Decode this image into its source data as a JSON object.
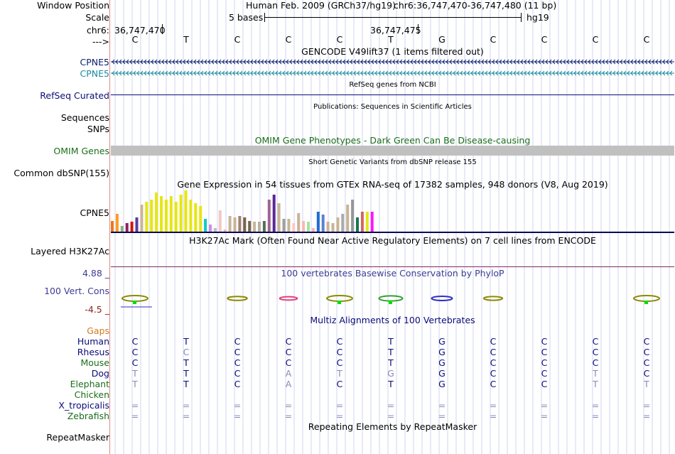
{
  "header": {
    "window_position_label": "Window Position",
    "scale_label": "Scale",
    "chrom_label": "chr6:",
    "strand_label": "--->",
    "assembly": "Human Feb. 2009 (GRCh37/hg19)",
    "position": "chr6:36,747,470-36,747,480 (11 bp)",
    "scale_text": "5 bases",
    "db": "hg19",
    "pos_left": "36,747,470",
    "pos_mid": "36,747,475",
    "bases": [
      "C",
      "T",
      "C",
      "C",
      "C",
      "T",
      "G",
      "C",
      "C",
      "C",
      "C"
    ]
  },
  "tracks": {
    "gencode_title": "GENCODE V49lift37 (1 items filtered out)",
    "gencode_items": [
      "CPNE5",
      "CPNE5"
    ],
    "refseq_title": "RefSeq genes from NCBI",
    "refseq_label": "RefSeq Curated",
    "pubs_title": "Publications: Sequences in Scientific Articles",
    "sequences_label": "Sequences",
    "snps_label": "SNPs",
    "omim_title": "OMIM Gene Phenotypes - Dark Green Can Be Disease-causing",
    "omim_label": "OMIM Genes",
    "dbsnp_title": "Short Genetic Variants from dbSNP release 155",
    "dbsnp_label": "Common dbSNP(155)",
    "gtex_title": "Gene Expression in 54 tissues from GTEx RNA-seq of 17382 samples, 948 donors (V8, Aug 2019)",
    "gtex_label": "CPNE5",
    "h3k27_title": "H3K27Ac Mark (Often Found Near Active Regulatory Elements) on 7 cell lines from ENCODE",
    "h3k27_label": "Layered H3K27Ac",
    "cons_title": "100 vertebrates Basewise Conservation by PhyloP",
    "cons_label": "100 Vert. Cons",
    "cons_max": "4.88 _",
    "cons_min": "-4.5 _",
    "multiz_title": "Multiz Alignments of 100 Vertebrates",
    "gaps_label": "Gaps",
    "repeat_title": "Repeating Elements by RepeatMasker",
    "repeat_label": "RepeatMasker"
  },
  "colors": {
    "gencode1": "#0a1e6e",
    "gencode2": "#1a8aa0",
    "refseq": "#0c0c78",
    "omim": "#1a6e1a",
    "omim_bar": "#c0c0c0",
    "cons": "#3c3c96",
    "cons_min": "#8c1e1e",
    "gaps": "#d2781e",
    "species_blue": "#0a0a78",
    "species_green": "#1a6e1a",
    "grid": "#cfd6f0"
  },
  "species": [
    {
      "name": "Human",
      "color": "#0a0a78",
      "bases": [
        "C",
        "T",
        "C",
        "C",
        "C",
        "T",
        "G",
        "C",
        "C",
        "C",
        "C"
      ]
    },
    {
      "name": "Rhesus",
      "color": "#0a0a78",
      "bases": [
        "C",
        "C",
        "C",
        "C",
        "C",
        "T",
        "G",
        "C",
        "C",
        "C",
        "C"
      ]
    },
    {
      "name": "Mouse",
      "color": "#1a6e1a",
      "bases": [
        "C",
        "T",
        "C",
        "C",
        "C",
        "T",
        "G",
        "C",
        "C",
        "C",
        "C"
      ]
    },
    {
      "name": "Dog",
      "color": "#0a0a78",
      "bases": [
        "T",
        "T",
        "C",
        "A",
        "T",
        "G",
        "G",
        "C",
        "C",
        "T",
        "C"
      ]
    },
    {
      "name": "Elephant",
      "color": "#1a6e1a",
      "bases": [
        "T",
        "T",
        "C",
        "A",
        "C",
        "T",
        "G",
        "C",
        "C",
        "T",
        "T"
      ]
    },
    {
      "name": "Chicken",
      "color": "#1a6e1a",
      "bases": [
        "",
        "",
        "",
        "",
        "",
        "",
        "",
        "",
        "",
        "",
        ""
      ]
    },
    {
      "name": "X_tropicalis",
      "color": "#0a0a78",
      "bases": [
        "=",
        "=",
        "=",
        "=",
        "=",
        "=",
        "=",
        "=",
        "=",
        "=",
        "="
      ]
    },
    {
      "name": "Zebrafish",
      "color": "#1a6e1a",
      "bases": [
        "=",
        "=",
        "=",
        "=",
        "=",
        "=",
        "=",
        "=",
        "=",
        "=",
        "="
      ]
    }
  ],
  "chart_data": {
    "type": "bar",
    "title": "Gene Expression in 54 tissues from GTEx RNA-seq of 17382 samples, 948 donors (V8, Aug 2019)",
    "values": [
      15,
      25,
      8,
      12,
      14,
      20,
      38,
      42,
      45,
      55,
      50,
      45,
      50,
      42,
      52,
      58,
      45,
      40,
      36,
      18,
      10,
      5,
      30,
      3,
      22,
      20,
      22,
      20,
      15,
      14,
      14,
      15,
      45,
      52,
      40,
      18,
      18,
      12,
      26,
      15,
      14,
      5,
      28,
      24,
      14,
      12,
      20,
      25,
      38,
      45,
      20,
      28,
      28,
      28
    ],
    "colors": [
      "#e8781e",
      "#ff9a28",
      "#8ab080",
      "#8c2060",
      "#d01414",
      "#5a3ca0",
      "#c8b496",
      "#e6e614",
      "#e6e614",
      "#e6e614",
      "#e6e614",
      "#e6e614",
      "#e6e614",
      "#e6e614",
      "#e6e614",
      "#e6e614",
      "#e6e614",
      "#e6e614",
      "#e6e614",
      "#14c8d0",
      "#d28ce6",
      "#bebebe",
      "#f0c8c8",
      "#ffb4b4",
      "#c8b496",
      "#c8b496",
      "#a0826e",
      "#78644a",
      "#78644a",
      "#c8b496",
      "#b4b4a0",
      "#5a6e5a",
      "#a06496",
      "#5a2896",
      "#c8b496",
      "#a0a0a0",
      "#c8b496",
      "#ffc8c8",
      "#c8b496",
      "#ffb4b4",
      "#a0e6a0",
      "#ffb4b4",
      "#1e6ed2",
      "#5a82d2",
      "#c8b496",
      "#c8b496",
      "#c8b496",
      "#aaaaaa",
      "#c8b496",
      "#969696",
      "#147850",
      "#d26464",
      "#e6e614",
      "#ff14ff"
    ]
  },
  "conservation": {
    "clusters": [
      {
        "base": 0,
        "value": 1.0,
        "color": "#8a8a00"
      },
      {
        "base": 2,
        "value": 0.4,
        "color": "#8a8a00"
      },
      {
        "base": 3,
        "value": 0.2,
        "color": "#e0407a"
      },
      {
        "base": 4,
        "value": 1.0,
        "color": "#8a8a00"
      },
      {
        "base": 5,
        "value": 0.8,
        "color": "#30a030"
      },
      {
        "base": 6,
        "value": 0.5,
        "color": "#3030c0"
      },
      {
        "base": 7,
        "value": 0.3,
        "color": "#8a8a00"
      },
      {
        "base": 10,
        "value": 1.0,
        "color": "#8a8a00"
      }
    ]
  }
}
